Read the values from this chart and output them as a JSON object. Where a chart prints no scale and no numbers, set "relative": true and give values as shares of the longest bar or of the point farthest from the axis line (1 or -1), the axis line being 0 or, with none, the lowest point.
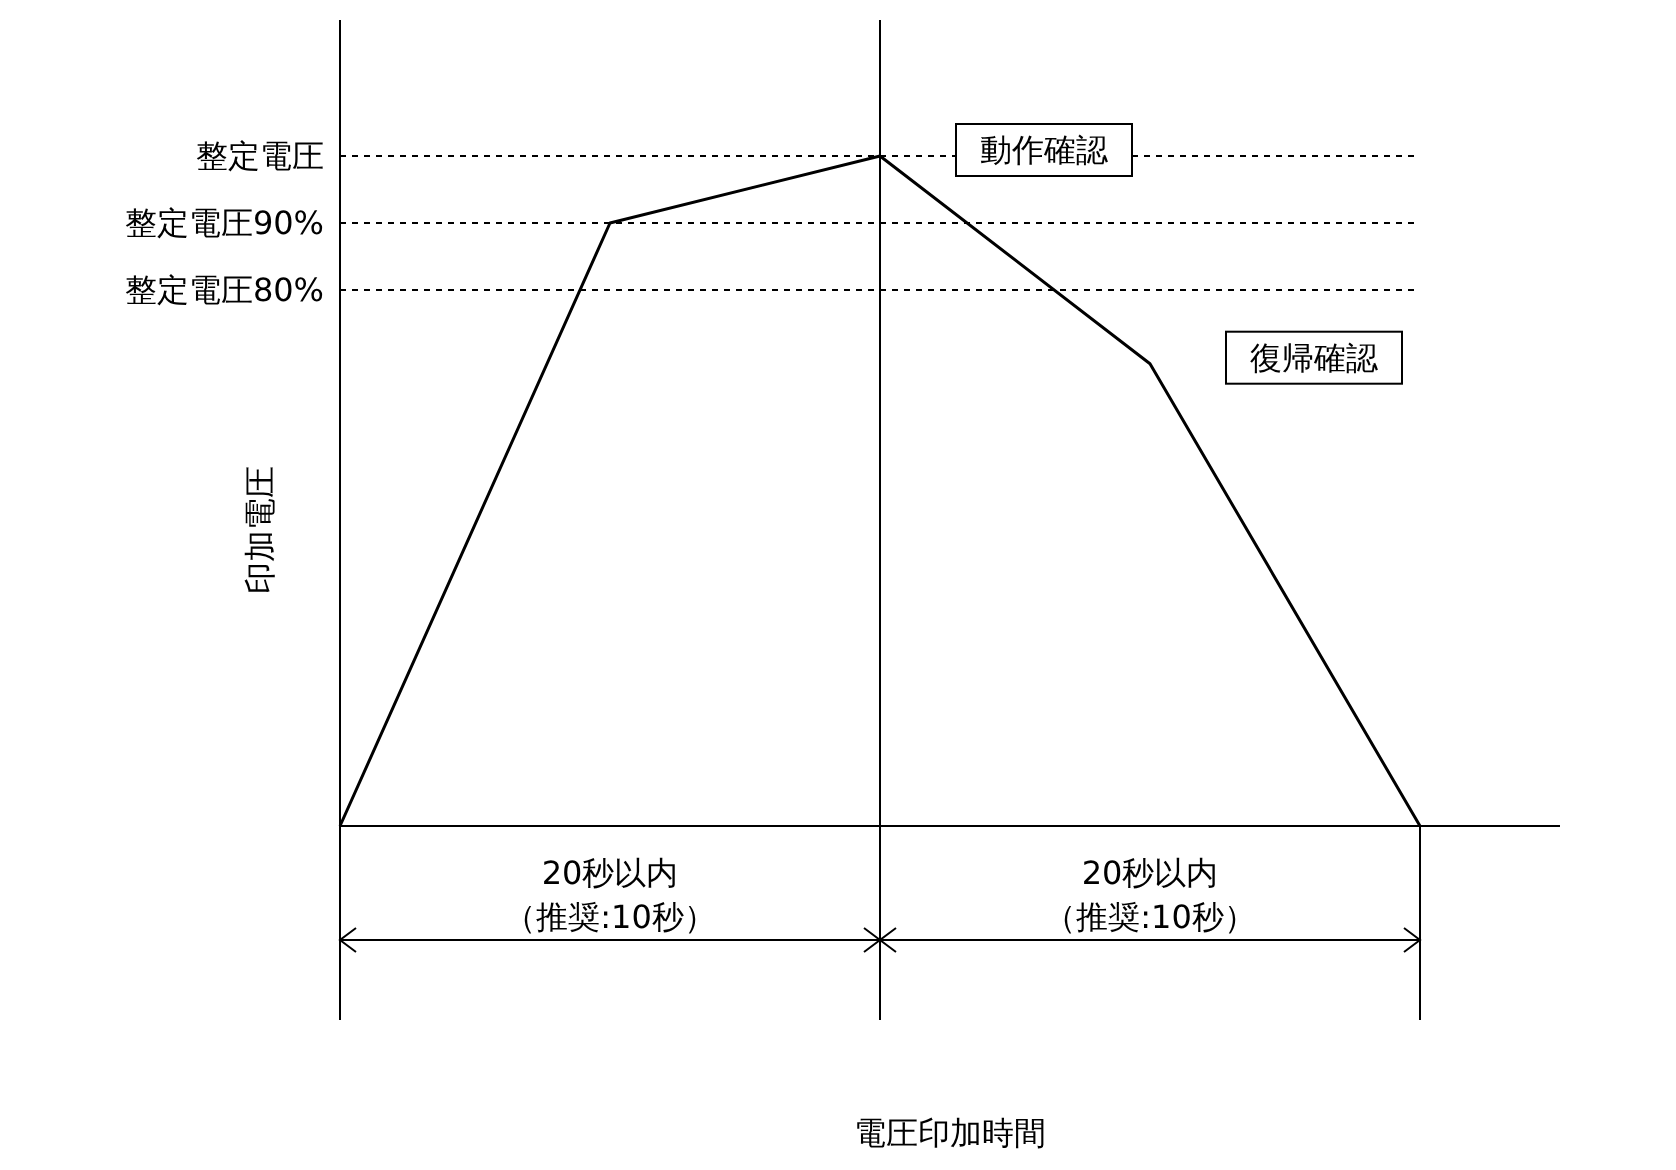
{
  "chart_data": {
    "type": "line",
    "relative": true,
    "ylabel": "印加電圧",
    "color": "#000000",
    "categories": [
      null,
      null,
      null,
      null,
      null
    ],
    "values": [
      0,
      0.9,
      1,
      0.69,
      0
    ],
    "ref_lines": [
      {
        "axis": "y",
        "value": 1,
        "label": "整定電圧",
        "line_style": "dotted"
      },
      {
        "axis": "y",
        "value": 0.9,
        "label": "整定電圧90%",
        "line_style": "dotted"
      },
      {
        "axis": "y",
        "value": 0.8,
        "label": "整定電圧80%",
        "line_style": "dotted"
      }
    ],
    "annotations": [
      "20秒以内（推奨:10秒）",
      "20秒以内（推奨:10秒）",
      "動作確認",
      "復帰確認",
      "電圧印加時間"
    ]
  }
}
